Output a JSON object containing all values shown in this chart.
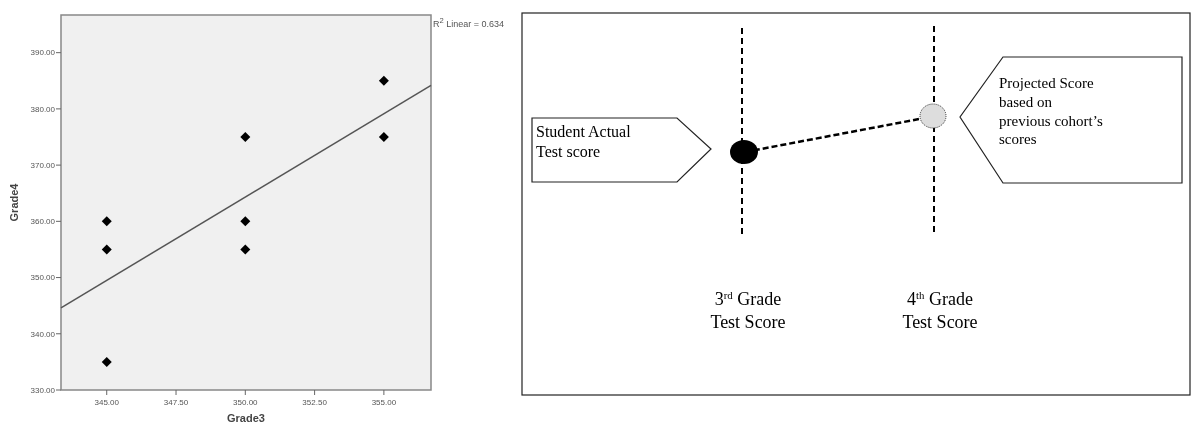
{
  "chart_data": [
    {
      "type": "scatter",
      "xlabel": "Grade3",
      "ylabel": "Grade4",
      "xlim": [
        343.35,
        356.7
      ],
      "ylim": [
        330,
        396.7
      ],
      "marker": "diamond",
      "grid": false,
      "xticks": [
        {
          "value": 345,
          "label": "345.00"
        },
        {
          "value": 347.5,
          "label": "347.50"
        },
        {
          "value": 350,
          "label": "350.00"
        },
        {
          "value": 352.5,
          "label": "352.50"
        },
        {
          "value": 355,
          "label": "355.00"
        }
      ],
      "yticks": [
        {
          "value": 330,
          "label": "330.00"
        },
        {
          "value": 340,
          "label": "340.00"
        },
        {
          "value": 350,
          "label": "350.00"
        },
        {
          "value": 360,
          "label": "360.00"
        },
        {
          "value": 370,
          "label": "370.00"
        },
        {
          "value": 380,
          "label": "380.00"
        },
        {
          "value": 390,
          "label": "390.00"
        }
      ],
      "annotations": [
        "R$^{2}$ Linear = 0.634"
      ],
      "series": [
        {
          "type": "scatter",
          "color": "#000000",
          "x": [
            345,
            345,
            345,
            350,
            350,
            350,
            355,
            355
          ],
          "values": [
            360,
            355,
            335,
            375,
            360,
            355,
            385,
            375
          ]
        },
        {
          "type": "line",
          "color": "#555555",
          "marker": "none",
          "x": [
            343.35,
            356.7
          ],
          "values": [
            344.6,
            384.2
          ]
        }
      ]
    },
    {
      "type": "other",
      "annotations": [
        "Student Actual\nTest score",
        "Projected Score\nbased on\nprevious cohort’s\nscores",
        "3$^{rd}$ Grade\nTest Score",
        "4$^{th}$ Grade\nTest Score"
      ]
    }
  ]
}
